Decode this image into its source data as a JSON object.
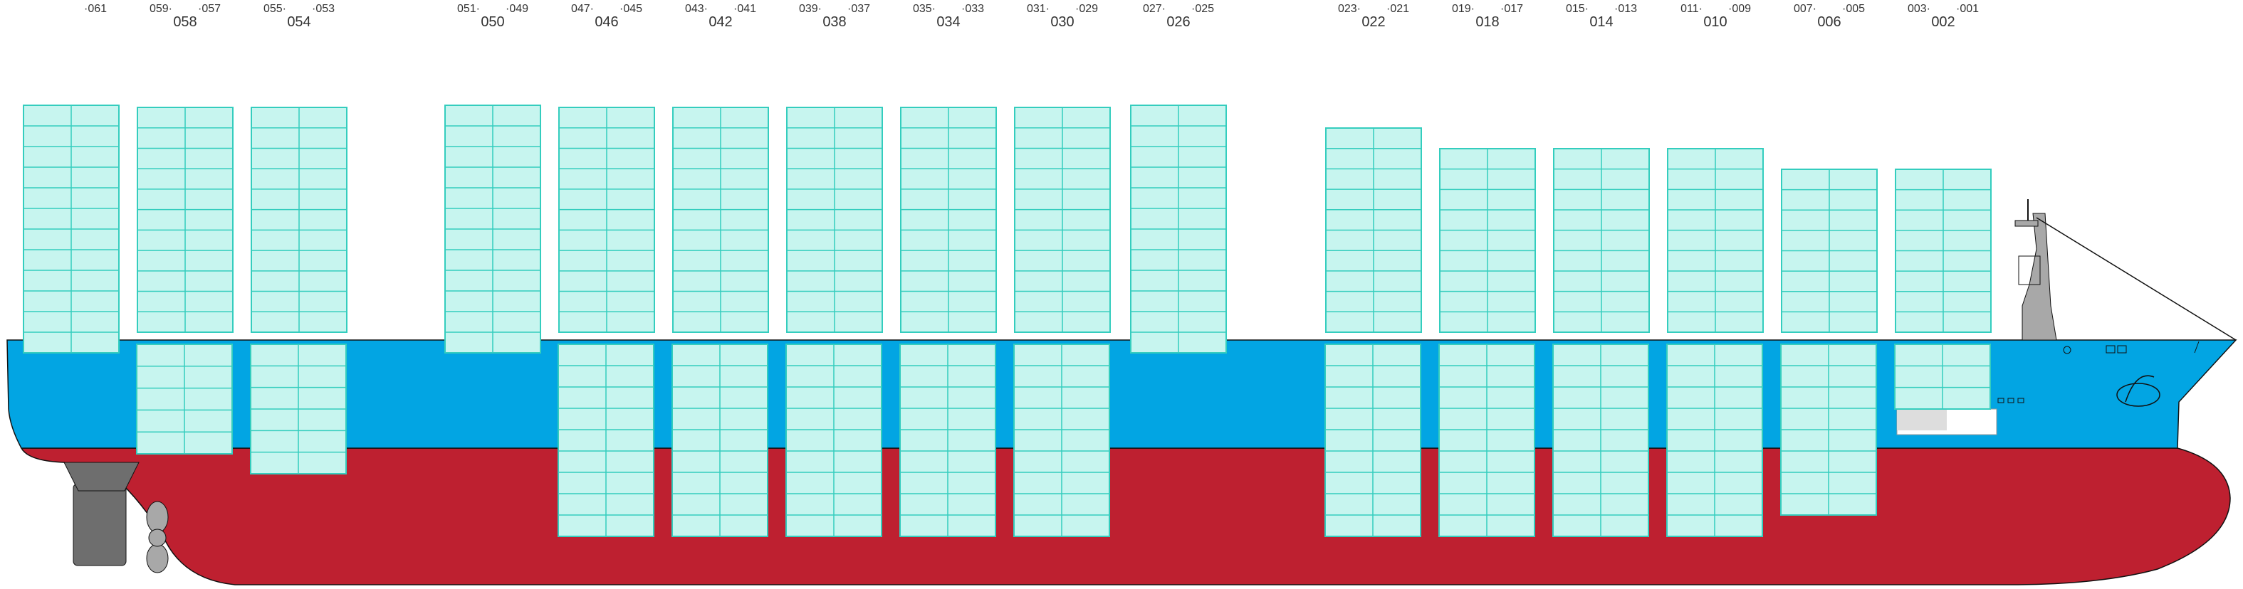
{
  "colors": {
    "hull_red": "#be2030",
    "hull_blue": "#02a5e3",
    "container_fill": "#c7f5ef",
    "container_stroke": "#34cdbe",
    "bridge_grey": "#a8a8a8",
    "rudder_grey": "#6e6e6e",
    "outline": "#111111"
  },
  "bays": [
    {
      "id": "b061",
      "even": "",
      "odd_l": "",
      "odd_r": "·061"
    },
    {
      "id": "b058",
      "even": "058",
      "odd_l": "059·",
      "odd_r": "·057"
    },
    {
      "id": "b054",
      "even": "054",
      "odd_l": "055·",
      "odd_r": "·053"
    },
    {
      "id": "b050",
      "even": "050",
      "odd_l": "051·",
      "odd_r": "·049"
    },
    {
      "id": "b046",
      "even": "046",
      "odd_l": "047·",
      "odd_r": "·045"
    },
    {
      "id": "b042",
      "even": "042",
      "odd_l": "043·",
      "odd_r": "·041"
    },
    {
      "id": "b038",
      "even": "038",
      "odd_l": "039·",
      "odd_r": "·037"
    },
    {
      "id": "b034",
      "even": "034",
      "odd_l": "035·",
      "odd_r": "·033"
    },
    {
      "id": "b030",
      "even": "030",
      "odd_l": "031·",
      "odd_r": "·029"
    },
    {
      "id": "b026",
      "even": "026",
      "odd_l": "027·",
      "odd_r": "·025"
    },
    {
      "id": "b022",
      "even": "022",
      "odd_l": "023·",
      "odd_r": "·021"
    },
    {
      "id": "b018",
      "even": "018",
      "odd_l": "019·",
      "odd_r": "·017"
    },
    {
      "id": "b014",
      "even": "014",
      "odd_l": "015·",
      "odd_r": "·013"
    },
    {
      "id": "b010",
      "even": "010",
      "odd_l": "011·",
      "odd_r": "·009"
    },
    {
      "id": "b006",
      "even": "006",
      "odd_l": "007·",
      "odd_r": "·005"
    },
    {
      "id": "b002",
      "even": "002",
      "odd_l": "003·",
      "odd_r": "·001"
    }
  ]
}
